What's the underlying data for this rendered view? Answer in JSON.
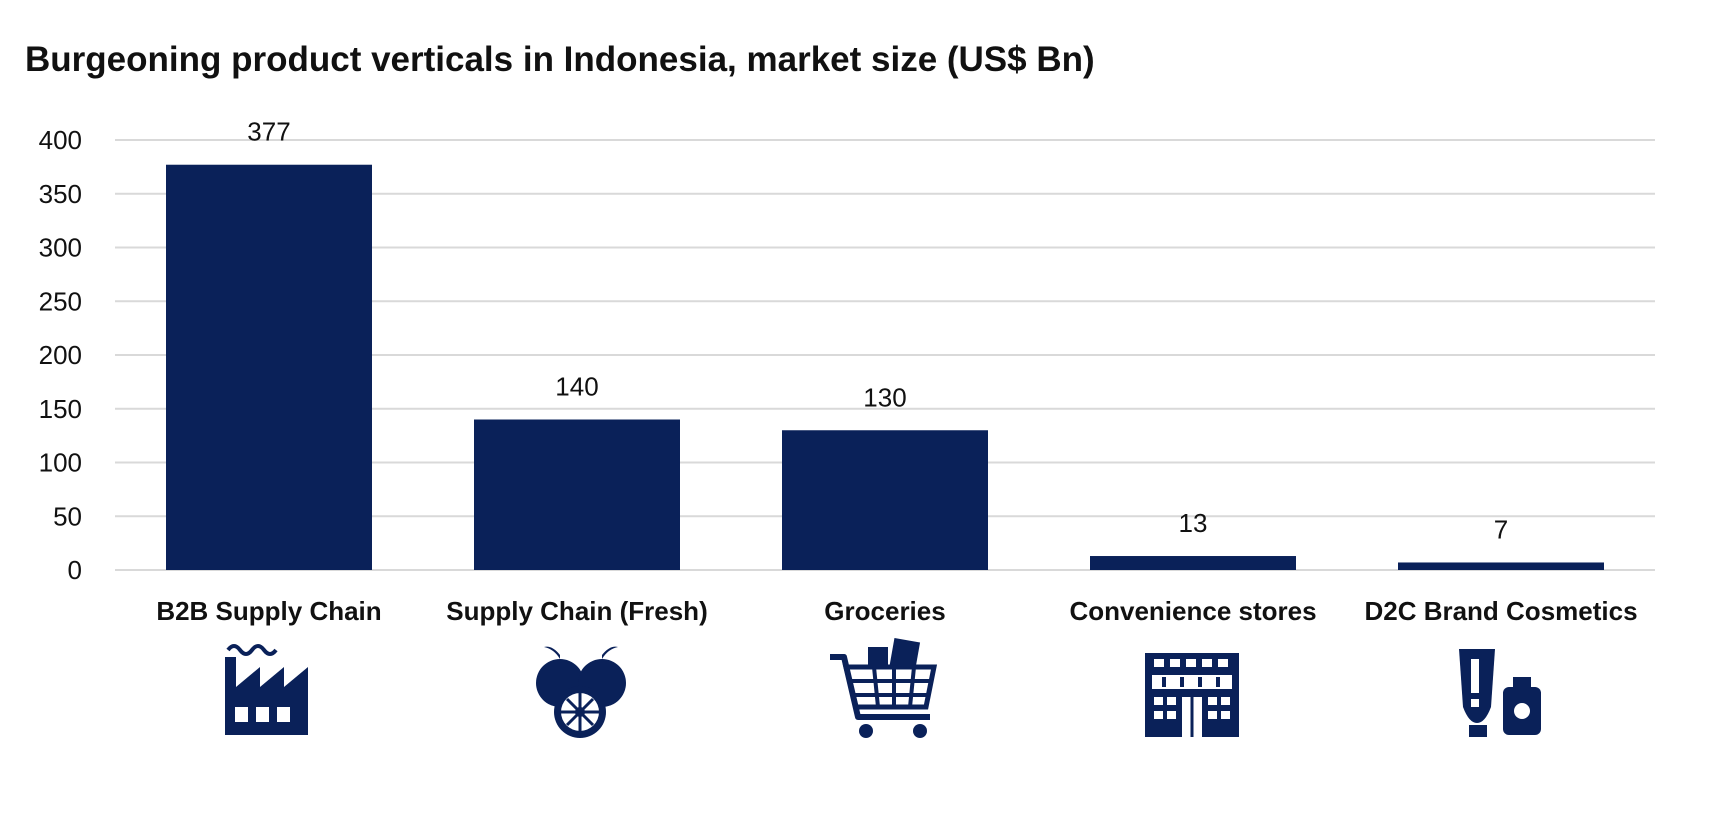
{
  "chart_data": {
    "type": "bar",
    "title": "Burgeoning product verticals in Indonesia, market size (US$ Bn)",
    "categories": [
      "B2B Supply Chain",
      "Supply Chain (Fresh)",
      "Groceries",
      "Convenience stores",
      "D2C Brand Cosmetics"
    ],
    "values": [
      377,
      140,
      130,
      13,
      7
    ],
    "ylim": [
      0,
      400
    ],
    "yticks": [
      0,
      50,
      100,
      150,
      200,
      250,
      300,
      350,
      400
    ],
    "grid": true,
    "legend": "none",
    "bar_color": "#0a2159",
    "grid_color": "#d9d9d9",
    "icons": [
      "factory-icon",
      "fruit-icon",
      "shopping-cart-icon",
      "store-building-icon",
      "cosmetics-icon"
    ]
  }
}
